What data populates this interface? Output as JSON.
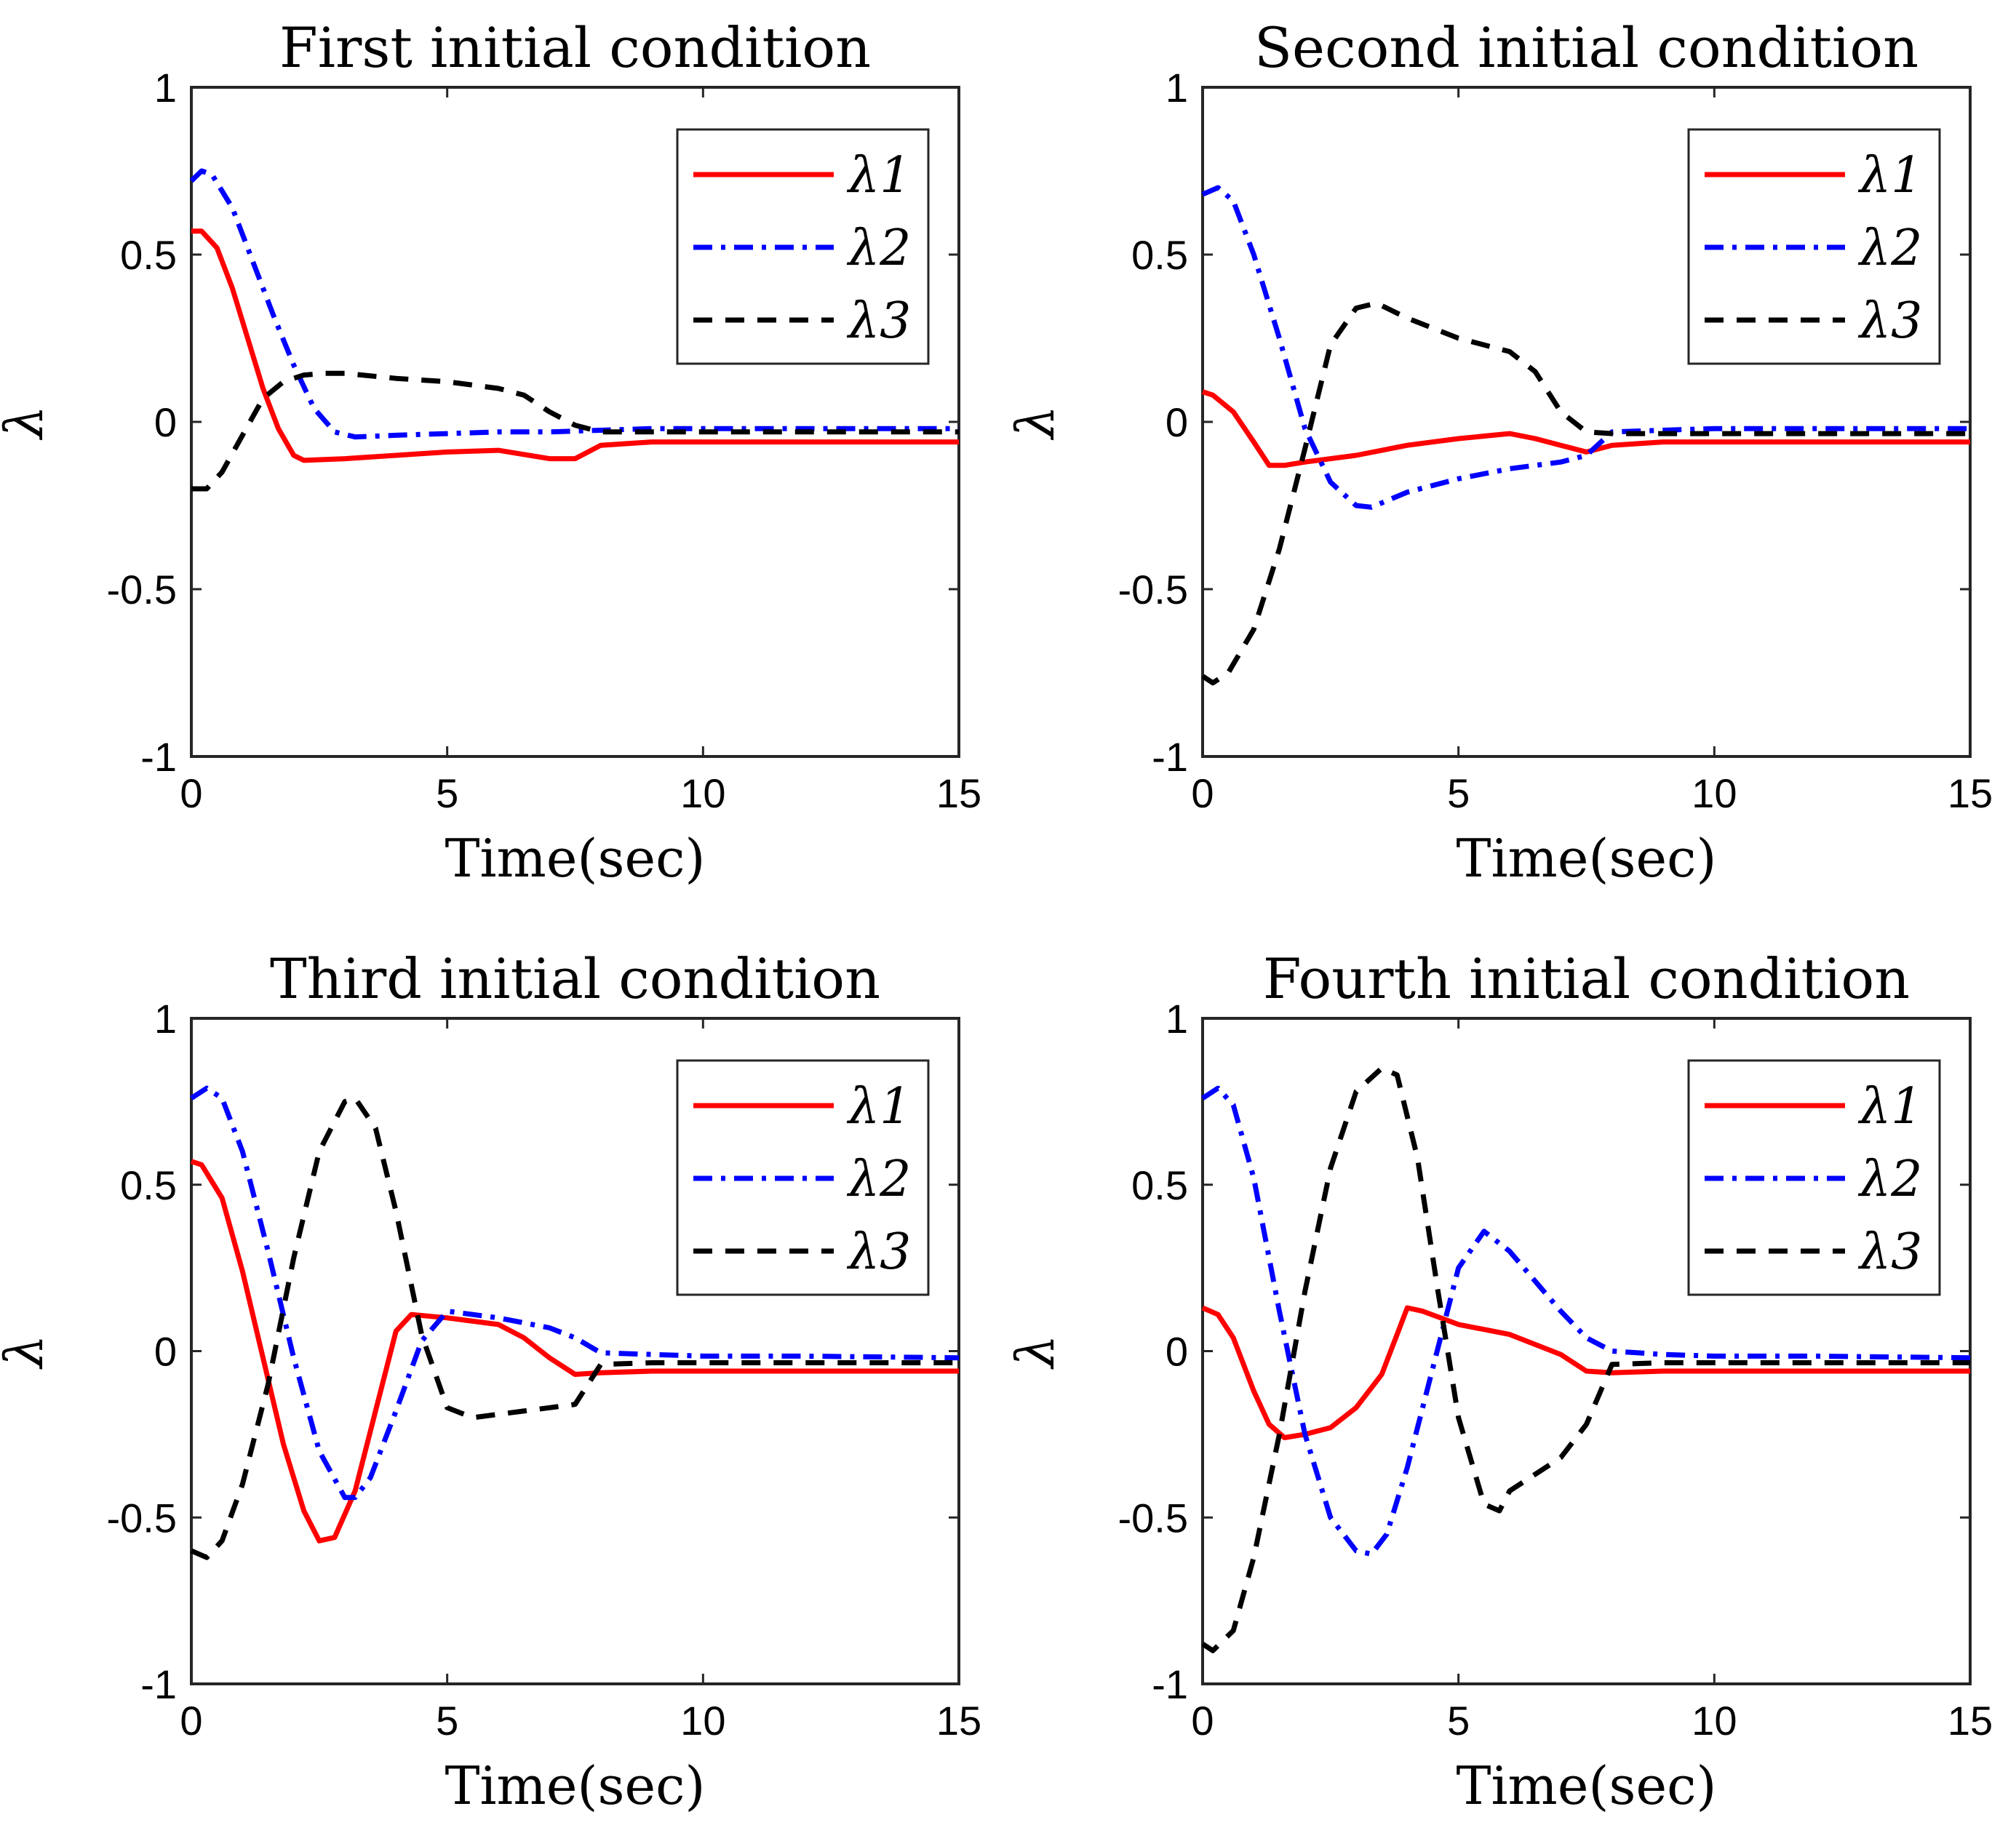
{
  "figure": {
    "ylabel": "λ",
    "xlabel": "Time(sec)"
  },
  "chart_data": [
    {
      "type": "line",
      "title": "First initial condition",
      "xlabel": "Time(sec)",
      "ylabel": "λ",
      "xlim": [
        0,
        15
      ],
      "ylim": [
        -1,
        1
      ],
      "xticks": [
        "0",
        "5",
        "10",
        "15"
      ],
      "yticks": [
        "1",
        "0.5",
        "0",
        "-0.5",
        "-1"
      ],
      "grid": false,
      "legend_position": "top-right",
      "series": [
        {
          "name": "λ1",
          "color": "#ff0000",
          "style": "solid",
          "x": [
            0,
            0.2,
            0.5,
            0.8,
            1.1,
            1.4,
            1.7,
            2.0,
            2.2,
            3.0,
            4.0,
            5.0,
            6.0,
            7.0,
            7.5,
            8.0,
            9.0,
            10,
            12,
            15
          ],
          "y": [
            0.57,
            0.57,
            0.52,
            0.4,
            0.25,
            0.1,
            -0.02,
            -0.1,
            -0.115,
            -0.11,
            -0.1,
            -0.09,
            -0.085,
            -0.11,
            -0.11,
            -0.07,
            -0.06,
            -0.06,
            -0.06,
            -0.06
          ]
        },
        {
          "name": "λ2",
          "color": "#0000ff",
          "style": "dashdot",
          "x": [
            0,
            0.2,
            0.4,
            0.8,
            1.2,
            1.6,
            2.0,
            2.4,
            2.8,
            3.2,
            4.0,
            5.0,
            6.0,
            7.0,
            8.0,
            9.0,
            10,
            12,
            15
          ],
          "y": [
            0.72,
            0.75,
            0.74,
            0.64,
            0.48,
            0.32,
            0.17,
            0.04,
            -0.03,
            -0.045,
            -0.04,
            -0.035,
            -0.03,
            -0.03,
            -0.025,
            -0.02,
            -0.02,
            -0.02,
            -0.02
          ]
        },
        {
          "name": "λ3",
          "color": "#000000",
          "style": "dashed",
          "x": [
            0,
            0.3,
            0.6,
            1.0,
            1.4,
            1.8,
            2.2,
            2.6,
            3.0,
            4.0,
            5.0,
            6.0,
            6.5,
            7.0,
            7.5,
            8.0,
            9.0,
            10,
            12,
            15
          ],
          "y": [
            -0.2,
            -0.2,
            -0.15,
            -0.04,
            0.07,
            0.12,
            0.14,
            0.145,
            0.145,
            0.13,
            0.12,
            0.1,
            0.08,
            0.03,
            -0.01,
            -0.03,
            -0.03,
            -0.03,
            -0.03,
            -0.03
          ]
        }
      ]
    },
    {
      "type": "line",
      "title": "Second initial condition",
      "xlabel": "Time(sec)",
      "ylabel": "λ",
      "xlim": [
        0,
        15
      ],
      "ylim": [
        -1,
        1
      ],
      "xticks": [
        "0",
        "5",
        "10",
        "15"
      ],
      "yticks": [
        "1",
        "0.5",
        "0",
        "-0.5",
        "-1"
      ],
      "grid": false,
      "legend_position": "top-right",
      "series": [
        {
          "name": "λ1",
          "color": "#ff0000",
          "style": "solid",
          "x": [
            0,
            0.2,
            0.6,
            1.0,
            1.3,
            1.6,
            2.0,
            3.0,
            4.0,
            5.0,
            6.0,
            6.5,
            7.0,
            7.5,
            8.0,
            9.0,
            10,
            12,
            15
          ],
          "y": [
            0.09,
            0.08,
            0.03,
            -0.06,
            -0.13,
            -0.13,
            -0.12,
            -0.1,
            -0.07,
            -0.05,
            -0.035,
            -0.05,
            -0.07,
            -0.09,
            -0.07,
            -0.06,
            -0.06,
            -0.06,
            -0.06
          ]
        },
        {
          "name": "λ2",
          "color": "#0000ff",
          "style": "dashdot",
          "x": [
            0,
            0.3,
            0.6,
            1.0,
            1.5,
            2.0,
            2.5,
            3.0,
            3.3,
            4.0,
            5.0,
            6.0,
            7.0,
            7.5,
            8.0,
            9.0,
            10,
            12,
            15
          ],
          "y": [
            0.68,
            0.7,
            0.66,
            0.5,
            0.25,
            -0.02,
            -0.18,
            -0.25,
            -0.255,
            -0.21,
            -0.17,
            -0.14,
            -0.12,
            -0.1,
            -0.03,
            -0.025,
            -0.02,
            -0.02,
            -0.02
          ]
        },
        {
          "name": "λ3",
          "color": "#000000",
          "style": "dashed",
          "x": [
            0,
            0.2,
            0.5,
            1.0,
            1.5,
            2.0,
            2.5,
            3.0,
            3.4,
            4.0,
            5.0,
            6.0,
            6.5,
            7.0,
            7.5,
            8.0,
            9.0,
            10,
            12,
            15
          ],
          "y": [
            -0.76,
            -0.78,
            -0.75,
            -0.62,
            -0.38,
            -0.08,
            0.23,
            0.34,
            0.355,
            0.31,
            0.25,
            0.21,
            0.15,
            0.03,
            -0.03,
            -0.035,
            -0.035,
            -0.035,
            -0.035,
            -0.035
          ]
        }
      ]
    },
    {
      "type": "line",
      "title": "Third initial condition",
      "xlabel": "Time(sec)",
      "ylabel": "λ",
      "xlim": [
        0,
        15
      ],
      "ylim": [
        -1,
        1
      ],
      "xticks": [
        "0",
        "5",
        "10",
        "15"
      ],
      "yticks": [
        "1",
        "0.5",
        "0",
        "-0.5",
        "-1"
      ],
      "grid": false,
      "legend_position": "top-right",
      "series": [
        {
          "name": "λ1",
          "color": "#ff0000",
          "style": "solid",
          "x": [
            0,
            0.2,
            0.6,
            1.0,
            1.4,
            1.8,
            2.2,
            2.5,
            2.8,
            3.2,
            3.6,
            4.0,
            4.3,
            5.0,
            6.0,
            6.5,
            7.0,
            7.5,
            8.0,
            9.0,
            10,
            12,
            15
          ],
          "y": [
            0.57,
            0.56,
            0.46,
            0.24,
            -0.02,
            -0.28,
            -0.48,
            -0.57,
            -0.56,
            -0.42,
            -0.18,
            0.06,
            0.11,
            0.1,
            0.08,
            0.04,
            -0.02,
            -0.07,
            -0.065,
            -0.06,
            -0.06,
            -0.06,
            -0.06
          ]
        },
        {
          "name": "λ2",
          "color": "#0000ff",
          "style": "dashdot",
          "x": [
            0,
            0.3,
            0.6,
            1.0,
            1.5,
            2.0,
            2.5,
            3.0,
            3.2,
            3.5,
            4.0,
            4.5,
            5.0,
            6.0,
            7.0,
            7.5,
            8.0,
            9.0,
            10,
            12,
            15
          ],
          "y": [
            0.76,
            0.79,
            0.76,
            0.6,
            0.3,
            -0.02,
            -0.3,
            -0.44,
            -0.44,
            -0.38,
            -0.18,
            0.03,
            0.12,
            0.1,
            0.07,
            0.04,
            -0.005,
            -0.01,
            -0.015,
            -0.015,
            -0.02
          ]
        },
        {
          "name": "λ3",
          "color": "#000000",
          "style": "dashed",
          "x": [
            0,
            0.3,
            0.6,
            1.0,
            1.5,
            2.0,
            2.5,
            3.0,
            3.2,
            3.6,
            4.0,
            4.5,
            5.0,
            5.5,
            6.0,
            7.0,
            7.5,
            8.0,
            9.0,
            10,
            12,
            15
          ],
          "y": [
            -0.6,
            -0.62,
            -0.57,
            -0.4,
            -0.1,
            0.28,
            0.6,
            0.75,
            0.76,
            0.67,
            0.42,
            0.05,
            -0.17,
            -0.2,
            -0.19,
            -0.17,
            -0.16,
            -0.04,
            -0.035,
            -0.035,
            -0.035,
            -0.035
          ]
        }
      ]
    },
    {
      "type": "line",
      "title": "Fourth initial condition",
      "xlabel": "Time(sec)",
      "ylabel": "λ",
      "xlim": [
        0,
        15
      ],
      "ylim": [
        -1,
        1
      ],
      "xticks": [
        "0",
        "5",
        "10",
        "15"
      ],
      "yticks": [
        "1",
        "0.5",
        "0",
        "-0.5",
        "-1"
      ],
      "grid": false,
      "legend_position": "top-right",
      "series": [
        {
          "name": "λ1",
          "color": "#ff0000",
          "style": "solid",
          "x": [
            0,
            0.3,
            0.6,
            1.0,
            1.3,
            1.6,
            2.0,
            2.5,
            3.0,
            3.5,
            3.8,
            4.0,
            4.3,
            5.0,
            6.0,
            7.0,
            7.5,
            8.0,
            9.0,
            10,
            12,
            15
          ],
          "y": [
            0.13,
            0.11,
            0.04,
            -0.12,
            -0.22,
            -0.26,
            -0.25,
            -0.23,
            -0.17,
            -0.07,
            0.05,
            0.13,
            0.12,
            0.08,
            0.05,
            -0.01,
            -0.06,
            -0.065,
            -0.06,
            -0.06,
            -0.06,
            -0.06
          ]
        },
        {
          "name": "λ2",
          "color": "#0000ff",
          "style": "dashdot",
          "x": [
            0,
            0.3,
            0.6,
            1.0,
            1.5,
            2.0,
            2.5,
            3.0,
            3.3,
            3.6,
            4.0,
            4.5,
            5.0,
            5.5,
            6.0,
            7.0,
            7.5,
            8.0,
            9.0,
            10,
            12,
            15
          ],
          "y": [
            0.76,
            0.79,
            0.74,
            0.52,
            0.12,
            -0.25,
            -0.5,
            -0.6,
            -0.61,
            -0.55,
            -0.35,
            -0.05,
            0.25,
            0.36,
            0.3,
            0.12,
            0.04,
            0.0,
            -0.01,
            -0.015,
            -0.015,
            -0.02
          ]
        },
        {
          "name": "λ3",
          "color": "#000000",
          "style": "dashed",
          "x": [
            0,
            0.2,
            0.6,
            1.0,
            1.5,
            2.0,
            2.5,
            3.0,
            3.5,
            3.8,
            4.2,
            4.6,
            5.0,
            5.5,
            5.8,
            6.0,
            6.5,
            7.0,
            7.5,
            8.0,
            9.0,
            10,
            12,
            15
          ],
          "y": [
            -0.88,
            -0.9,
            -0.84,
            -0.62,
            -0.25,
            0.18,
            0.55,
            0.78,
            0.85,
            0.83,
            0.58,
            0.18,
            -0.2,
            -0.46,
            -0.48,
            -0.42,
            -0.37,
            -0.32,
            -0.22,
            -0.04,
            -0.035,
            -0.035,
            -0.035,
            -0.035
          ]
        }
      ]
    }
  ]
}
